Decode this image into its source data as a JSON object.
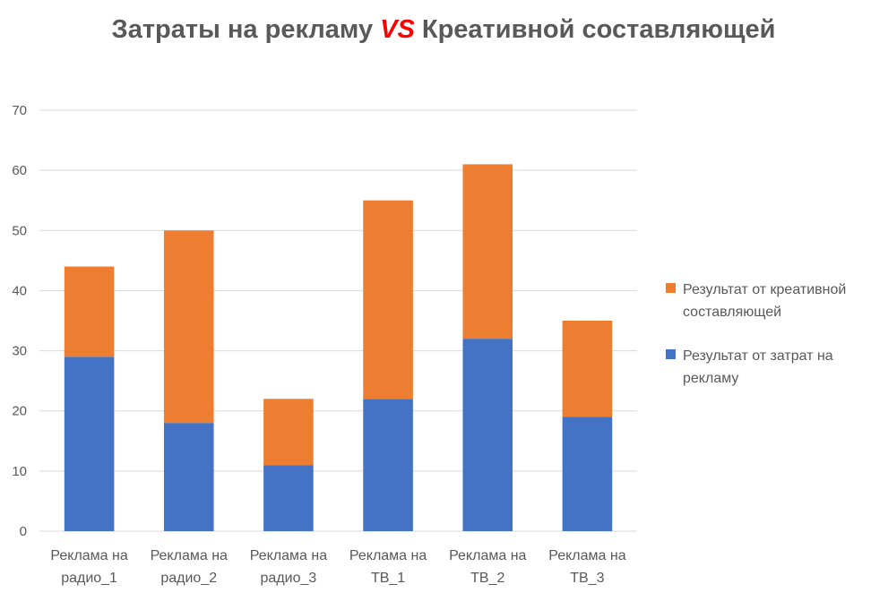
{
  "chart_data": {
    "type": "bar",
    "stacked": true,
    "title": {
      "part1": "Затраты на рекламу ",
      "vs": "VS",
      "part2": " Креативной составляющей"
    },
    "categories": [
      [
        "Реклама на",
        "радио_1"
      ],
      [
        "Реклама на",
        "радио_2"
      ],
      [
        "Реклама на",
        "радио_3"
      ],
      [
        "Реклама на",
        "ТВ_1"
      ],
      [
        "Реклама на",
        "ТВ_2"
      ],
      [
        "Реклама на",
        "ТВ_3"
      ]
    ],
    "series": [
      {
        "name_lines": [
          "Результат от затрат на",
          "рекламу"
        ],
        "color": "#4472c4",
        "values": [
          29,
          18,
          11,
          22,
          32,
          19
        ]
      },
      {
        "name_lines": [
          "Результат от креативной",
          "составляющей"
        ],
        "color": "#ed7d31",
        "values": [
          15,
          32,
          11,
          33,
          29,
          16
        ]
      }
    ],
    "ylim": [
      0,
      70
    ],
    "yticks": [
      0,
      10,
      20,
      30,
      40,
      50,
      60,
      70
    ],
    "grid": true,
    "legend_position": "right",
    "title_colors": {
      "main": "#595959",
      "vs": "#ff0000"
    }
  }
}
